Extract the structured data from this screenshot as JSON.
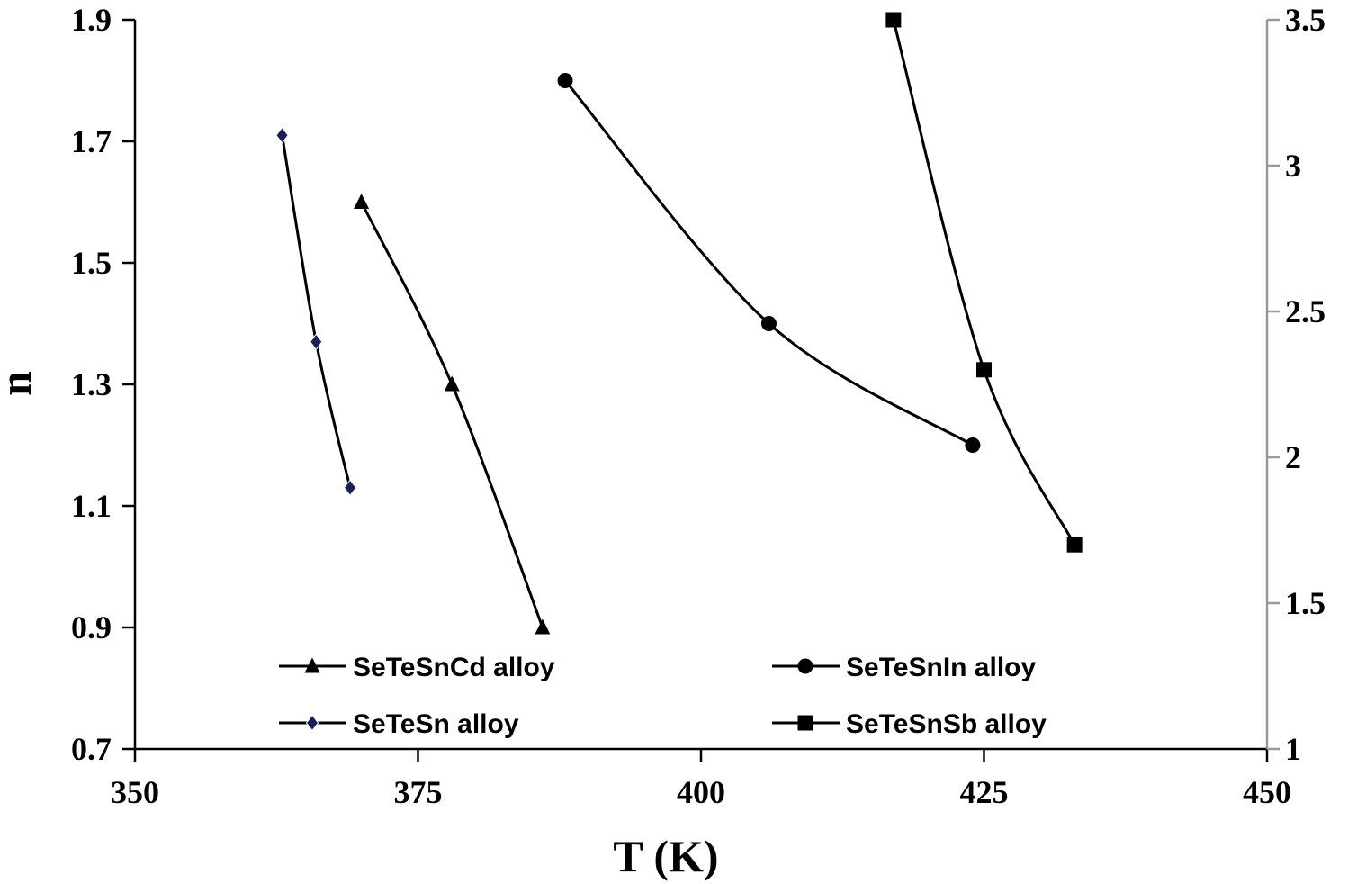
{
  "chart_data": {
    "type": "line",
    "xlabel": "T (K)",
    "ylabel": "n",
    "xlim": [
      350,
      450
    ],
    "ylim": [
      0.7,
      1.9
    ],
    "y2lim": [
      1,
      3.5
    ],
    "xticks": [
      "350",
      "375",
      "400",
      "425",
      "450"
    ],
    "yticks": [
      "0.7",
      "0.9",
      "1.1",
      "1.3",
      "1.5",
      "1.7",
      "1.9"
    ],
    "y2ticks": [
      "1",
      "1.5",
      "2",
      "2.5",
      "3",
      "3.5"
    ],
    "grid": false,
    "legend_position": "bottom",
    "colors": {
      "line": "#000000",
      "diamond": "#1a1f5c",
      "right_axis": "#999999"
    },
    "series": [
      {
        "name": "SeTeSnCd alloy",
        "marker": "triangle",
        "axis": "left",
        "x": [
          370,
          378,
          386
        ],
        "y": [
          1.6,
          1.3,
          0.9
        ]
      },
      {
        "name": "SeTeSnIn alloy",
        "marker": "circle",
        "axis": "left",
        "x": [
          388,
          406,
          424
        ],
        "y": [
          1.8,
          1.4,
          1.2
        ]
      },
      {
        "name": "SeTeSn alloy",
        "marker": "diamond",
        "axis": "left",
        "x": [
          363,
          366,
          369
        ],
        "y": [
          1.71,
          1.37,
          1.13
        ]
      },
      {
        "name": "SeTeSnSb alloy",
        "marker": "square",
        "axis": "right",
        "x": [
          417,
          425,
          433
        ],
        "y": [
          3.5,
          2.3,
          1.7
        ]
      }
    ]
  }
}
